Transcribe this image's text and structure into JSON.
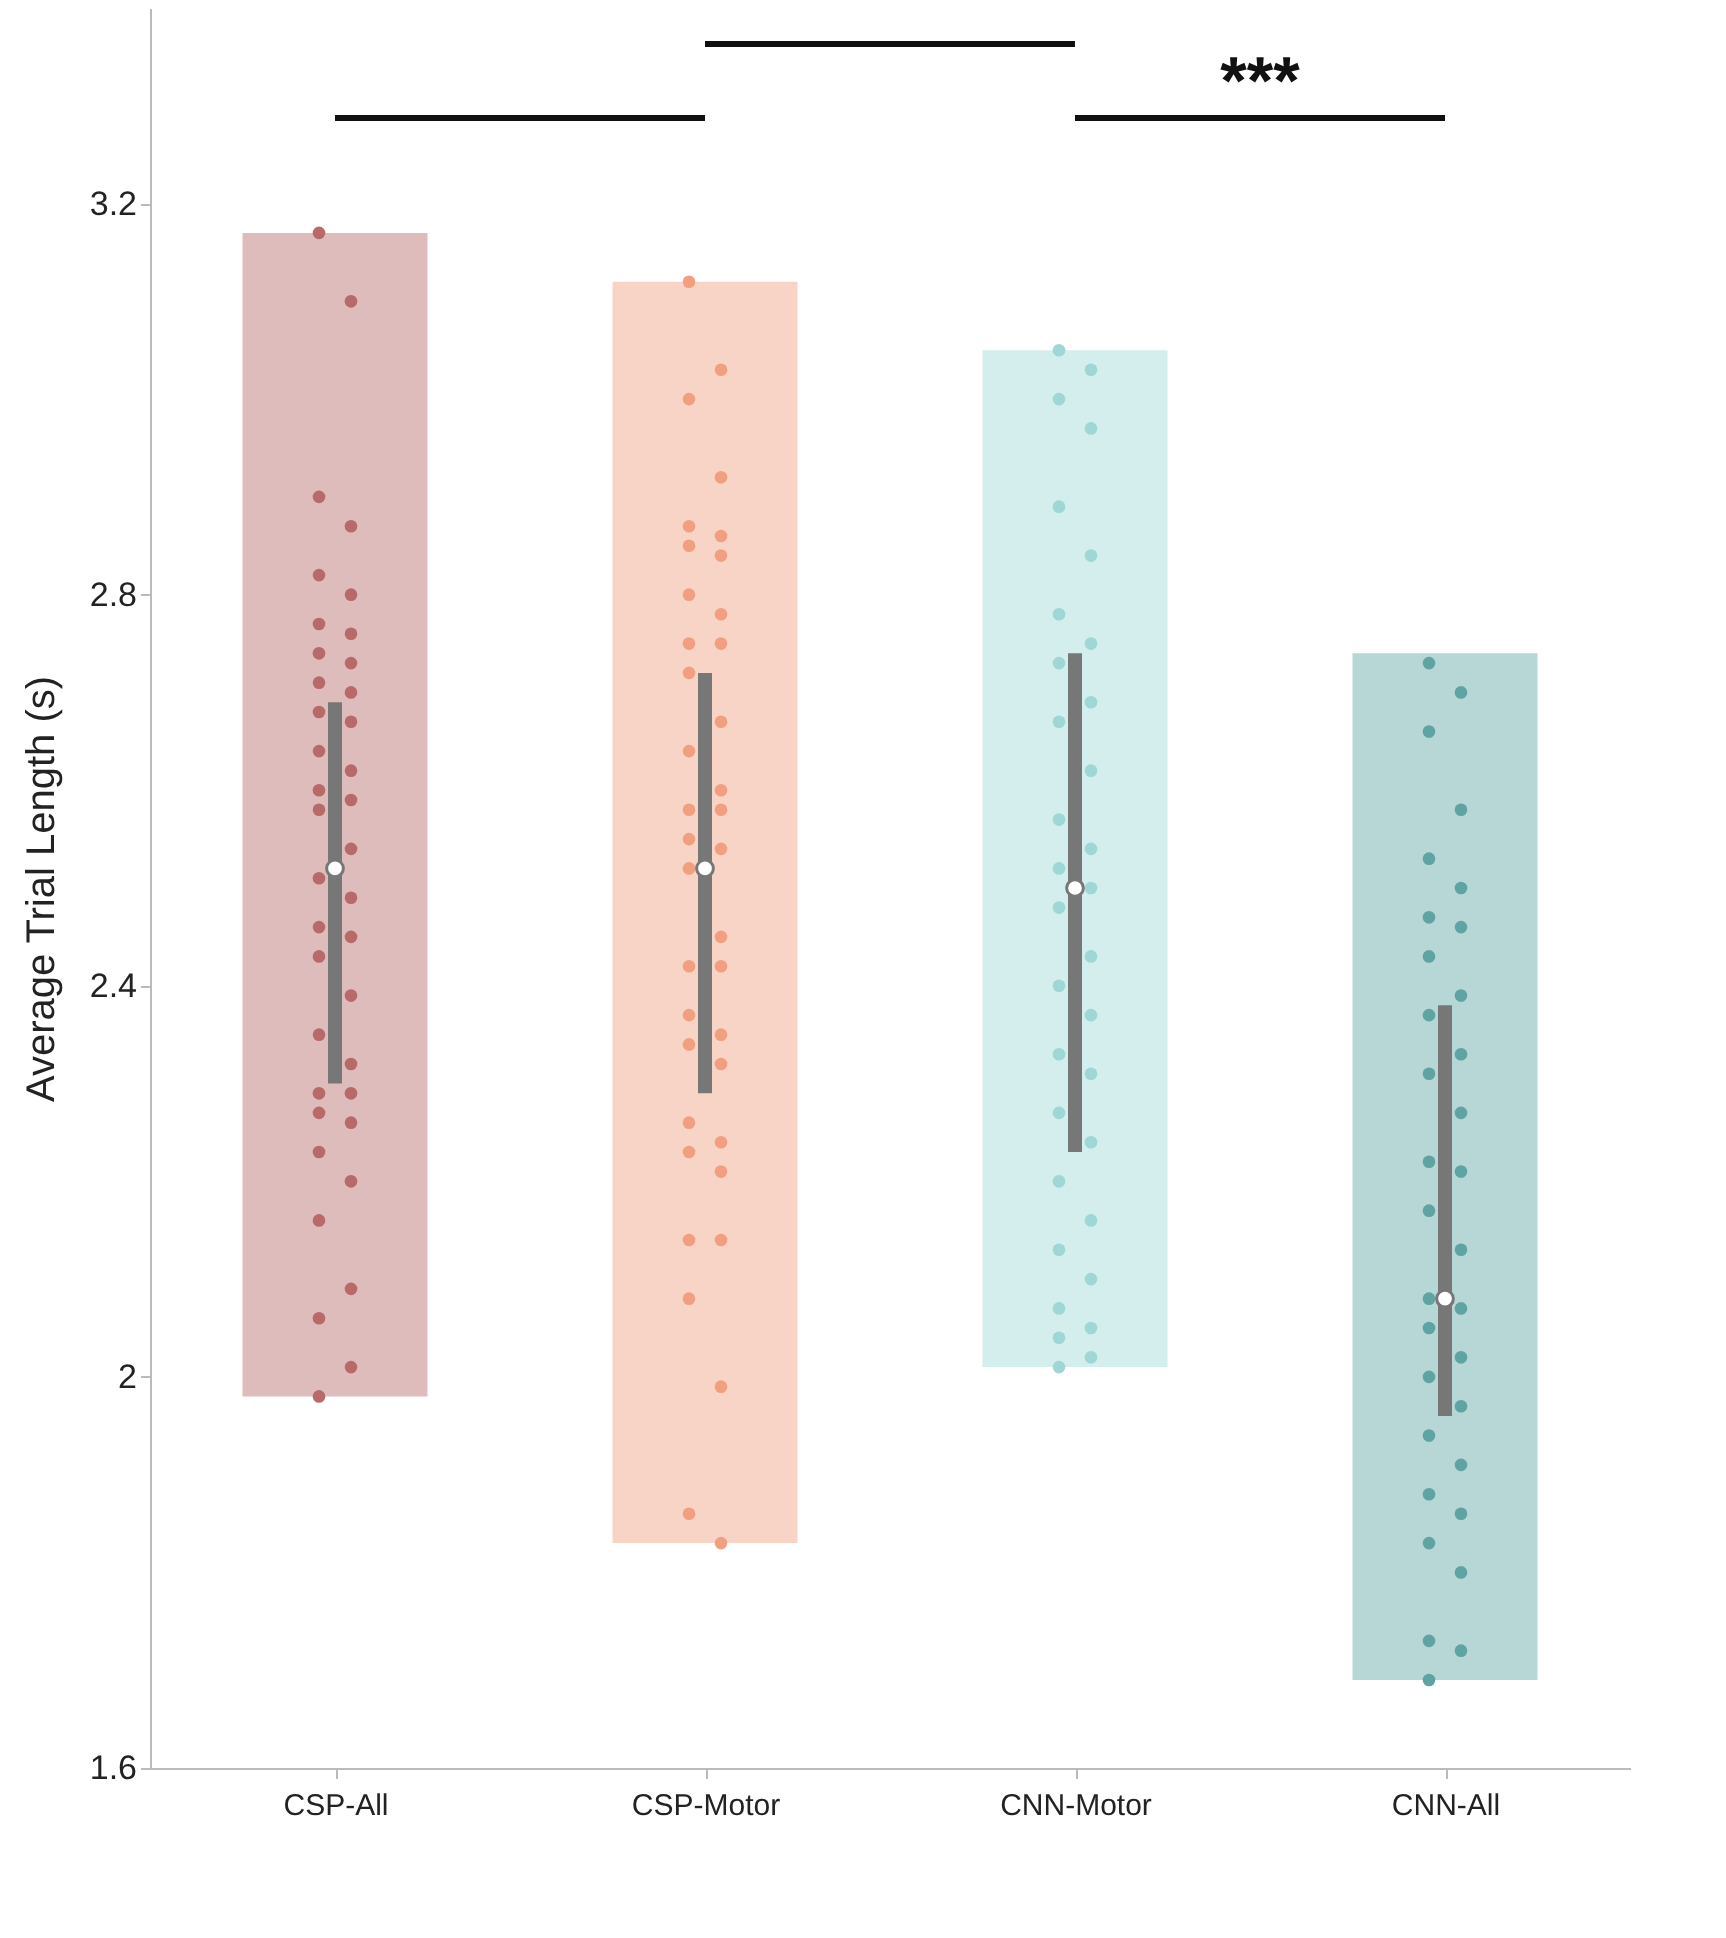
{
  "chart_data": {
    "type": "box",
    "ylabel": "Average Trial Length (s)",
    "categories": [
      "CSP-All",
      "CSP-Motor",
      "CNN-Motor",
      "CNN-All"
    ],
    "colors": [
      "#777777",
      "#777777",
      "#777777",
      "#777777"
    ],
    "boxes": [
      {
        "low": 1.98,
        "q1": 2.3,
        "median": 2.52,
        "q3": 2.69,
        "high": 3.17
      },
      {
        "low": 1.83,
        "q1": 2.29,
        "median": 2.52,
        "q3": 2.72,
        "high": 3.12
      },
      {
        "low": 2.01,
        "q1": 2.23,
        "median": 2.5,
        "q3": 2.74,
        "high": 3.05
      },
      {
        "low": 1.69,
        "q1": 1.96,
        "median": 2.08,
        "q3": 2.38,
        "high": 2.74
      }
    ],
    "series": [
      {
        "type": "scatter",
        "color": "#b86a6a",
        "x": [
          "CSP-All",
          "CSP-All",
          "CSP-All",
          "CSP-All",
          "CSP-All",
          "CSP-All",
          "CSP-All",
          "CSP-All",
          "CSP-All",
          "CSP-All",
          "CSP-All",
          "CSP-All",
          "CSP-All",
          "CSP-All",
          "CSP-All",
          "CSP-All",
          "CSP-All",
          "CSP-All",
          "CSP-All",
          "CSP-All",
          "CSP-All",
          "CSP-All",
          "CSP-All",
          "CSP-All",
          "CSP-All",
          "CSP-All",
          "CSP-All",
          "CSP-All",
          "CSP-All",
          "CSP-All",
          "CSP-All",
          "CSP-All",
          "CSP-All",
          "CSP-All",
          "CSP-All",
          "CSP-All",
          "CSP-All",
          "CSP-All",
          "CSP-All"
        ],
        "values": [
          3.17,
          3.1,
          2.9,
          2.87,
          2.82,
          2.8,
          2.77,
          2.76,
          2.74,
          2.73,
          2.71,
          2.7,
          2.68,
          2.67,
          2.64,
          2.62,
          2.6,
          2.59,
          2.58,
          2.54,
          2.51,
          2.49,
          2.46,
          2.45,
          2.43,
          2.39,
          2.35,
          2.32,
          2.29,
          2.29,
          2.27,
          2.26,
          2.23,
          2.2,
          2.16,
          2.09,
          2.06,
          2.01,
          1.98
        ]
      },
      {
        "type": "scatter",
        "color": "#f0a080",
        "x": [
          "CSP-Motor",
          "CSP-Motor",
          "CSP-Motor",
          "CSP-Motor",
          "CSP-Motor",
          "CSP-Motor",
          "CSP-Motor",
          "CSP-Motor",
          "CSP-Motor",
          "CSP-Motor",
          "CSP-Motor",
          "CSP-Motor",
          "CSP-Motor",
          "CSP-Motor",
          "CSP-Motor",
          "CSP-Motor",
          "CSP-Motor",
          "CSP-Motor",
          "CSP-Motor",
          "CSP-Motor",
          "CSP-Motor",
          "CSP-Motor",
          "CSP-Motor",
          "CSP-Motor",
          "CSP-Motor",
          "CSP-Motor",
          "CSP-Motor",
          "CSP-Motor",
          "CSP-Motor",
          "CSP-Motor",
          "CSP-Motor",
          "CSP-Motor",
          "CSP-Motor",
          "CSP-Motor",
          "CSP-Motor",
          "CSP-Motor",
          "CSP-Motor",
          "CSP-Motor"
        ],
        "values": [
          3.12,
          3.03,
          3.0,
          2.92,
          2.87,
          2.86,
          2.85,
          2.84,
          2.8,
          2.78,
          2.75,
          2.75,
          2.72,
          2.67,
          2.64,
          2.6,
          2.58,
          2.58,
          2.55,
          2.54,
          2.52,
          2.45,
          2.42,
          2.42,
          2.37,
          2.35,
          2.34,
          2.32,
          2.26,
          2.24,
          2.23,
          2.21,
          2.14,
          2.14,
          2.08,
          1.99,
          1.86,
          1.83
        ]
      },
      {
        "type": "scatter",
        "color": "#9fd6d6",
        "x": [
          "CNN-Motor",
          "CNN-Motor",
          "CNN-Motor",
          "CNN-Motor",
          "CNN-Motor",
          "CNN-Motor",
          "CNN-Motor",
          "CNN-Motor",
          "CNN-Motor",
          "CNN-Motor",
          "CNN-Motor",
          "CNN-Motor",
          "CNN-Motor",
          "CNN-Motor",
          "CNN-Motor",
          "CNN-Motor",
          "CNN-Motor",
          "CNN-Motor",
          "CNN-Motor",
          "CNN-Motor",
          "CNN-Motor",
          "CNN-Motor",
          "CNN-Motor",
          "CNN-Motor",
          "CNN-Motor",
          "CNN-Motor",
          "CNN-Motor",
          "CNN-Motor",
          "CNN-Motor",
          "CNN-Motor",
          "CNN-Motor",
          "CNN-Motor",
          "CNN-Motor"
        ],
        "values": [
          3.05,
          3.03,
          3.0,
          2.97,
          2.89,
          2.84,
          2.78,
          2.75,
          2.73,
          2.69,
          2.67,
          2.62,
          2.57,
          2.54,
          2.52,
          2.5,
          2.48,
          2.43,
          2.4,
          2.37,
          2.33,
          2.31,
          2.27,
          2.24,
          2.2,
          2.16,
          2.13,
          2.1,
          2.07,
          2.05,
          2.04,
          2.02,
          2.01
        ]
      },
      {
        "type": "scatter",
        "color": "#5fa3a3",
        "x": [
          "CNN-All",
          "CNN-All",
          "CNN-All",
          "CNN-All",
          "CNN-All",
          "CNN-All",
          "CNN-All",
          "CNN-All",
          "CNN-All",
          "CNN-All",
          "CNN-All",
          "CNN-All",
          "CNN-All",
          "CNN-All",
          "CNN-All",
          "CNN-All",
          "CNN-All",
          "CNN-All",
          "CNN-All",
          "CNN-All",
          "CNN-All",
          "CNN-All",
          "CNN-All",
          "CNN-All",
          "CNN-All",
          "CNN-All",
          "CNN-All",
          "CNN-All",
          "CNN-All",
          "CNN-All",
          "CNN-All",
          "CNN-All",
          "CNN-All"
        ],
        "values": [
          2.73,
          2.7,
          2.66,
          2.58,
          2.53,
          2.5,
          2.47,
          2.46,
          2.43,
          2.39,
          2.37,
          2.33,
          2.31,
          2.27,
          2.22,
          2.21,
          2.17,
          2.13,
          2.08,
          2.07,
          2.05,
          2.02,
          2.0,
          1.97,
          1.94,
          1.91,
          1.88,
          1.86,
          1.83,
          1.8,
          1.73,
          1.72,
          1.69
        ]
      }
    ],
    "ylim": [
      1.6,
      3.4
    ],
    "yticks": [
      1.6,
      2,
      2.4,
      2.8,
      3.2
    ],
    "grid": false,
    "annotations": [
      "***"
    ]
  }
}
